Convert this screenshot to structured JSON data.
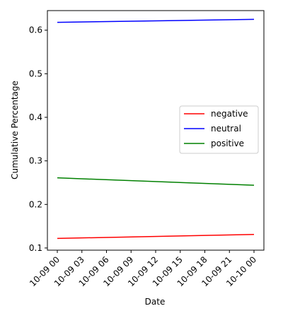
{
  "chart_data": {
    "type": "line",
    "title": "",
    "xlabel": "Date",
    "ylabel": "Cumulative Percentage",
    "x": [
      "2023-10-09 00:00",
      "2023-10-10 00:00"
    ],
    "xticks": [
      "10-09 00",
      "10-09 03",
      "10-09 06",
      "10-09 09",
      "10-09 12",
      "10-09 15",
      "10-09 18",
      "10-09 21",
      "10-10 00"
    ],
    "yticks": [
      "0.1",
      "0.2",
      "0.3",
      "0.4",
      "0.5",
      "0.6"
    ],
    "ylim": [
      0.095,
      0.645
    ],
    "grid": false,
    "legend_position": "center-right",
    "series": [
      {
        "name": "negative",
        "color": "#ff0000",
        "values": [
          0.122,
          0.131
        ]
      },
      {
        "name": "neutral",
        "color": "#0000ff",
        "values": [
          0.618,
          0.625
        ]
      },
      {
        "name": "positive",
        "color": "#008000",
        "values": [
          0.261,
          0.244
        ]
      }
    ]
  }
}
